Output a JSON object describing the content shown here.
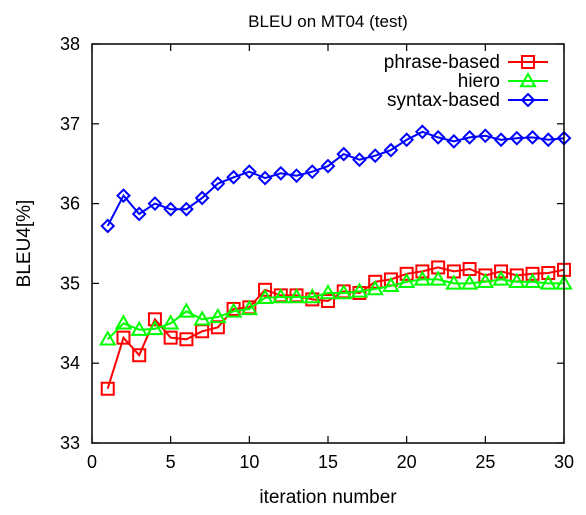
{
  "chart_data": {
    "type": "line",
    "title": "BLEU on MT04 (test)",
    "xlabel": "iteration number",
    "ylabel": "BLEU4[%]",
    "xlim": [
      0,
      30
    ],
    "ylim": [
      33,
      38
    ],
    "xticks": [
      "0",
      "5",
      "10",
      "15",
      "20",
      "25",
      "30"
    ],
    "yticks": [
      "33",
      "34",
      "35",
      "36",
      "37",
      "38"
    ],
    "grid": false,
    "legend_position": "top-right",
    "x": [
      1,
      2,
      3,
      4,
      5,
      6,
      7,
      8,
      9,
      10,
      11,
      12,
      13,
      14,
      15,
      16,
      17,
      18,
      19,
      20,
      21,
      22,
      23,
      24,
      25,
      26,
      27,
      28,
      29,
      30
    ],
    "series": [
      {
        "name": "phrase-based",
        "color": "#ff0000",
        "marker": "square",
        "values": [
          33.68,
          34.32,
          34.1,
          34.55,
          34.32,
          34.3,
          34.4,
          34.45,
          34.68,
          34.7,
          34.92,
          34.85,
          34.85,
          34.8,
          34.78,
          34.9,
          34.88,
          35.02,
          35.05,
          35.12,
          35.15,
          35.2,
          35.15,
          35.18,
          35.1,
          35.15,
          35.1,
          35.12,
          35.13,
          35.17
        ]
      },
      {
        "name": "hiero",
        "color": "#00ff00",
        "marker": "triangle",
        "values": [
          34.3,
          34.5,
          34.42,
          34.43,
          34.5,
          34.65,
          34.55,
          34.58,
          34.65,
          34.68,
          34.82,
          34.83,
          34.83,
          34.83,
          34.88,
          34.88,
          34.9,
          34.93,
          34.97,
          35.02,
          35.05,
          35.05,
          35.0,
          35.0,
          35.02,
          35.05,
          35.02,
          35.02,
          35.0,
          35.0
        ]
      },
      {
        "name": "syntax-based",
        "color": "#0000ff",
        "marker": "diamond",
        "values": [
          35.72,
          36.1,
          35.87,
          36.0,
          35.93,
          35.93,
          36.07,
          36.25,
          36.33,
          36.4,
          36.32,
          36.38,
          36.35,
          36.4,
          36.47,
          36.62,
          36.55,
          36.6,
          36.67,
          36.8,
          36.9,
          36.83,
          36.78,
          36.83,
          36.85,
          36.8,
          36.82,
          36.83,
          36.8,
          36.82
        ]
      }
    ]
  }
}
